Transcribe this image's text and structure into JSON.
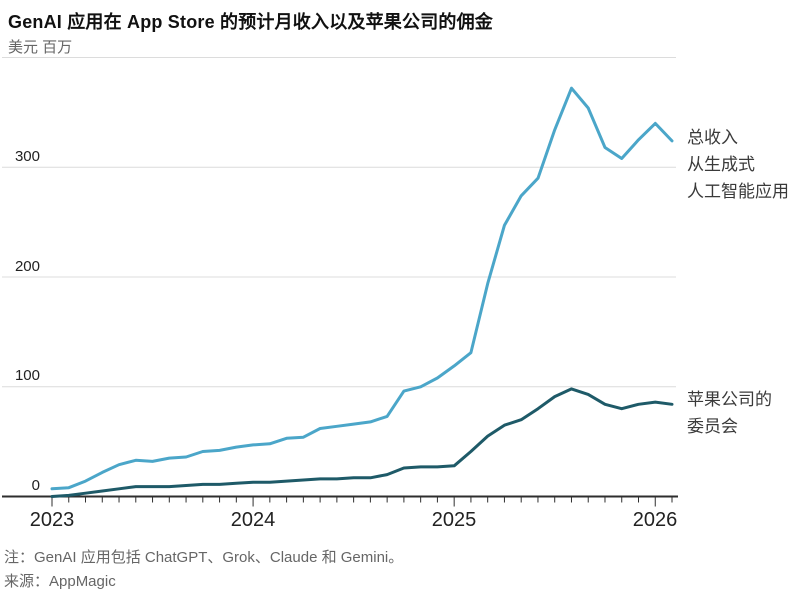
{
  "header": {
    "title": "GenAI 应用在 App Store 的预计月收入以及苹果公司的佣金",
    "unit_label": "美元 百万"
  },
  "footer": {
    "note": "注：GenAI 应用包括 ChatGPT、Grok、Claude 和 Gemini。",
    "source": "来源：AppMagic"
  },
  "chart_data": {
    "type": "line",
    "title": "GenAI 应用在 App Store 的预计月收入以及苹果公司的佣金",
    "ylabel": "美元 百万",
    "xlabel": "",
    "ylim": [
      0,
      400
    ],
    "yticks": [
      "0",
      "100",
      "200",
      "300"
    ],
    "xticks": [
      "2023",
      "2024",
      "2025",
      "2026"
    ],
    "grid": true,
    "legend_position": "right-of-line-ends",
    "x_frequency": "monthly",
    "months": [
      "2023-01",
      "2023-02",
      "2023-03",
      "2023-04",
      "2023-05",
      "2023-06",
      "2023-07",
      "2023-08",
      "2023-09",
      "2023-10",
      "2023-11",
      "2023-12",
      "2024-01",
      "2024-02",
      "2024-03",
      "2024-04",
      "2024-05",
      "2024-06",
      "2024-07",
      "2024-08",
      "2024-09",
      "2024-10",
      "2024-11",
      "2024-12",
      "2025-01",
      "2025-02",
      "2025-03",
      "2025-04",
      "2025-05",
      "2025-06",
      "2025-07",
      "2025-08",
      "2025-09",
      "2025-10",
      "2025-11",
      "2025-12",
      "2026-01",
      "2026-02"
    ],
    "series": [
      {
        "name": "总收入从生成式人工智能应用",
        "label_lines": [
          "总收入",
          "从生成式",
          "人工智能应用"
        ],
        "color": "#4BA6C9",
        "values": [
          7,
          8,
          14,
          22,
          29,
          33,
          32,
          35,
          36,
          41,
          42,
          45,
          47,
          48,
          53,
          54,
          62,
          64,
          66,
          68,
          73,
          96,
          100,
          108,
          119,
          131,
          194,
          247,
          274,
          290,
          334,
          372,
          354,
          318,
          308,
          325,
          340,
          324
        ]
      },
      {
        "name": "苹果公司的委员会",
        "label_lines": [
          "苹果公司的",
          "委员会"
        ],
        "color": "#1E5A68",
        "values": [
          0,
          1,
          3,
          5,
          7,
          9,
          9,
          9,
          10,
          11,
          11,
          12,
          13,
          13,
          14,
          15,
          16,
          16,
          17,
          17,
          20,
          26,
          27,
          27,
          28,
          41,
          55,
          65,
          70,
          80,
          91,
          98,
          93,
          84,
          80,
          84,
          86,
          84
        ]
      }
    ],
    "colors": {
      "grid": "#dcdcdc",
      "axis": "#2e2e2e",
      "total_revenue_line": "#4BA6C9",
      "commission_line": "#1E5A68"
    }
  }
}
